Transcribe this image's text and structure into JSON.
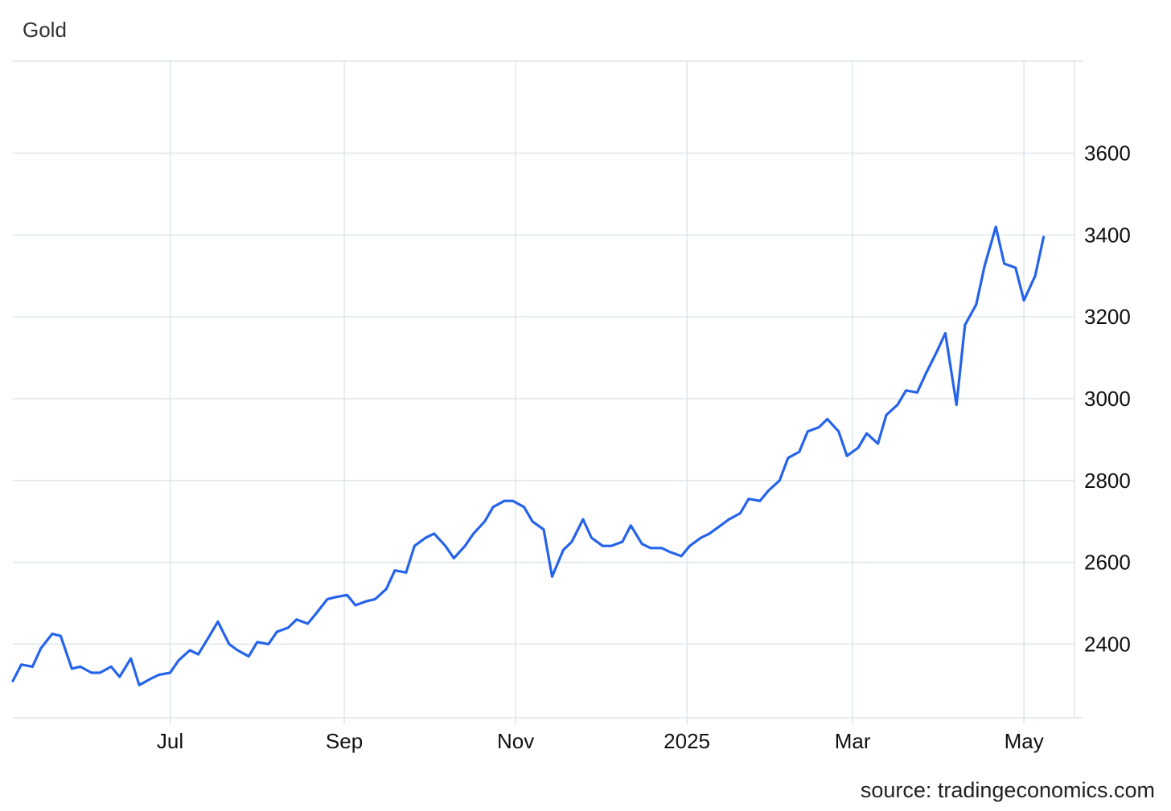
{
  "title": "Gold",
  "source": "source: tradingeconomics.com",
  "colors": {
    "line": "#2563eb",
    "grid": "#dde6ea"
  },
  "chart_data": {
    "type": "line",
    "title": "Gold",
    "xlabel": "",
    "ylabel": "",
    "x_tick_labels": [
      {
        "date": "2024-07-01",
        "label": "Jul"
      },
      {
        "date": "2024-09-01",
        "label": "Sep"
      },
      {
        "date": "2024-11-01",
        "label": "Nov"
      },
      {
        "date": "2025-01-01",
        "label": "2025"
      },
      {
        "date": "2025-03-01",
        "label": "Mar"
      },
      {
        "date": "2025-05-01",
        "label": "May"
      }
    ],
    "y_ticks": [
      2400,
      2600,
      2800,
      3000,
      3200,
      3400,
      3600
    ],
    "ylim": [
      2220,
      3825
    ],
    "xlim": [
      "2024-05-06",
      "2025-05-19"
    ],
    "grid": true,
    "y_axis_position": "right",
    "series": [
      {
        "x": [
          "2024-05-06",
          "2024-05-09",
          "2024-05-13",
          "2024-05-16",
          "2024-05-20",
          "2024-05-23",
          "2024-05-27",
          "2024-05-30",
          "2024-06-03",
          "2024-06-06",
          "2024-06-10",
          "2024-06-13",
          "2024-06-17",
          "2024-06-20",
          "2024-06-24",
          "2024-06-27",
          "2024-07-01",
          "2024-07-04",
          "2024-07-08",
          "2024-07-11",
          "2024-07-15",
          "2024-07-18",
          "2024-07-22",
          "2024-07-25",
          "2024-07-29",
          "2024-08-01",
          "2024-08-05",
          "2024-08-08",
          "2024-08-12",
          "2024-08-15",
          "2024-08-19",
          "2024-08-22",
          "2024-08-26",
          "2024-08-29",
          "2024-09-02",
          "2024-09-05",
          "2024-09-09",
          "2024-09-12",
          "2024-09-16",
          "2024-09-19",
          "2024-09-23",
          "2024-09-26",
          "2024-09-30",
          "2024-10-03",
          "2024-10-07",
          "2024-10-10",
          "2024-10-14",
          "2024-10-17",
          "2024-10-21",
          "2024-10-24",
          "2024-10-28",
          "2024-10-31",
          "2024-11-04",
          "2024-11-07",
          "2024-11-11",
          "2024-11-14",
          "2024-11-18",
          "2024-11-21",
          "2024-11-25",
          "2024-11-28",
          "2024-12-02",
          "2024-12-05",
          "2024-12-09",
          "2024-12-12",
          "2024-12-16",
          "2024-12-19",
          "2024-12-23",
          "2024-12-26",
          "2024-12-30",
          "2025-01-02",
          "2025-01-06",
          "2025-01-09",
          "2025-01-13",
          "2025-01-16",
          "2025-01-20",
          "2025-01-23",
          "2025-01-27",
          "2025-01-30",
          "2025-02-03",
          "2025-02-06",
          "2025-02-10",
          "2025-02-13",
          "2025-02-17",
          "2025-02-20",
          "2025-02-24",
          "2025-02-27",
          "2025-03-03",
          "2025-03-06",
          "2025-03-10",
          "2025-03-13",
          "2025-03-17",
          "2025-03-20",
          "2025-03-24",
          "2025-03-27",
          "2025-03-31",
          "2025-04-03",
          "2025-04-07",
          "2025-04-10",
          "2025-04-14",
          "2025-04-17",
          "2025-04-21",
          "2025-04-24",
          "2025-04-28",
          "2025-05-01",
          "2025-05-05",
          "2025-05-08"
        ],
        "values": [
          2310,
          2350,
          2345,
          2390,
          2425,
          2420,
          2340,
          2345,
          2330,
          2330,
          2345,
          2320,
          2365,
          2300,
          2315,
          2325,
          2330,
          2360,
          2385,
          2375,
          2420,
          2455,
          2400,
          2385,
          2370,
          2405,
          2400,
          2430,
          2440,
          2460,
          2450,
          2475,
          2510,
          2515,
          2520,
          2495,
          2505,
          2510,
          2535,
          2580,
          2575,
          2640,
          2660,
          2670,
          2640,
          2610,
          2640,
          2670,
          2700,
          2735,
          2750,
          2750,
          2735,
          2700,
          2680,
          2565,
          2630,
          2650,
          2705,
          2660,
          2640,
          2640,
          2650,
          2690,
          2645,
          2635,
          2635,
          2625,
          2615,
          2640,
          2660,
          2670,
          2690,
          2705,
          2720,
          2755,
          2750,
          2775,
          2800,
          2855,
          2870,
          2920,
          2930,
          2950,
          2920,
          2860,
          2880,
          2915,
          2890,
          2960,
          2985,
          3020,
          3015,
          3060,
          3115,
          3160,
          2985,
          3180,
          3230,
          3325,
          3420,
          3330,
          3320,
          3240,
          3300,
          3395
        ]
      }
    ]
  }
}
